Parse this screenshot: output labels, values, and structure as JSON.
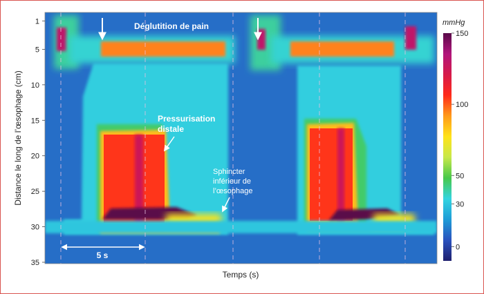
{
  "chart_data": {
    "type": "heatmap",
    "title": "",
    "xlabel": "Temps (s)",
    "ylabel": "Distance le long de l’œsophage (cm)",
    "y_ticks": [
      1,
      5,
      10,
      15,
      20,
      25,
      30,
      35
    ],
    "ylim": [
      0,
      35
    ],
    "y_reversed": true,
    "colorbar": {
      "unit": "mmHg",
      "ticks": [
        150,
        100,
        50,
        30,
        0
      ],
      "range": [
        -10,
        150
      ],
      "colors": [
        "#1f1f6e",
        "#2a52be",
        "#1e9cd7",
        "#33d4e0",
        "#47c84a",
        "#c7e84a",
        "#ffe31a",
        "#ff9a1a",
        "#ff2a1a",
        "#d61a4a",
        "#b1157c",
        "#5a0a4a"
      ]
    },
    "background_value": 10,
    "regions": [
      {
        "kind": "ues",
        "swallow": 1,
        "y_cm": [
          1,
          6
        ],
        "value": 130
      },
      {
        "kind": "upper-band",
        "swallow": 1,
        "y_cm": [
          3,
          5
        ],
        "value": 95
      },
      {
        "kind": "distal-pressurisation",
        "swallow": 1,
        "y_cm": [
          15.5,
          29
        ],
        "value": 105
      },
      {
        "kind": "les-contraction",
        "swallow": 1,
        "y_cm": [
          27,
          30
        ],
        "value": 150
      },
      {
        "kind": "ues",
        "swallow": 2,
        "y_cm": [
          1,
          6
        ],
        "value": 130
      },
      {
        "kind": "upper-band",
        "swallow": 2,
        "y_cm": [
          3,
          5
        ],
        "value": 95
      },
      {
        "kind": "distal-pressurisation",
        "swallow": 2,
        "y_cm": [
          15,
          29
        ],
        "value": 105
      },
      {
        "kind": "les-contraction",
        "swallow": 2,
        "y_cm": [
          27,
          30
        ],
        "value": 150
      }
    ],
    "annotations": {
      "swallow_label": "Déglutition de pain",
      "distal_label": [
        "Pressurisation",
        "distale"
      ],
      "les_label": [
        "Sphincter",
        "inférieur de",
        "l’œsophage"
      ],
      "scale_label": "5 s"
    }
  }
}
